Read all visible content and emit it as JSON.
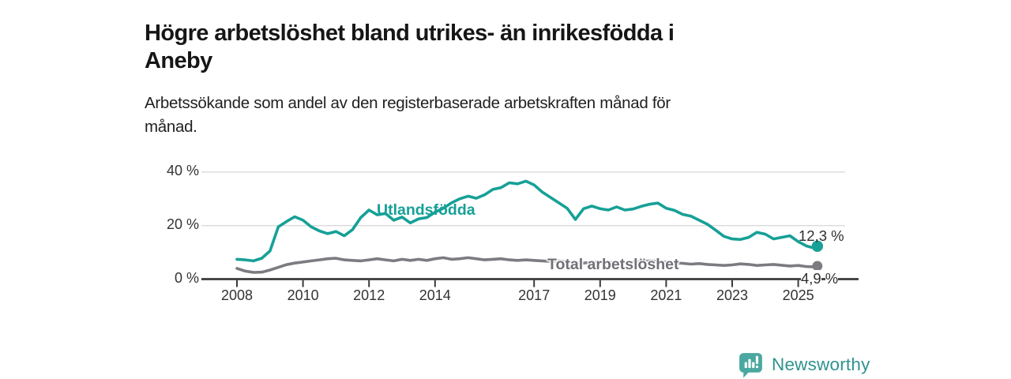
{
  "header": {
    "title_lines": [
      "Högre arbetslöshet bland utrikes- än inrikesfödda i",
      "Aneby"
    ],
    "subtitle_lines": [
      "Arbetssökande som andel av den registerbaserade arbetskraften månad för",
      "månad."
    ]
  },
  "chart_data": {
    "type": "line",
    "title": "Högre arbetslöshet bland utrikes- än inrikesfödda i Aneby",
    "subtitle": "Arbetssökande som andel av den registerbaserade arbetskraften månad för månad.",
    "ylim": [
      0,
      44
    ],
    "xlim": [
      2007.9,
      2025.8
    ],
    "grid": "horizontal",
    "y_ticks": [
      {
        "value": 0,
        "label": "0 %"
      },
      {
        "value": 20,
        "label": "20 %"
      },
      {
        "value": 40,
        "label": "40 %"
      }
    ],
    "x_ticks": [
      {
        "year": 2008,
        "label": "2008"
      },
      {
        "year": 2010,
        "label": "2010"
      },
      {
        "year": 2012,
        "label": "2012"
      },
      {
        "year": 2014,
        "label": "2014"
      },
      {
        "year": 2017,
        "label": "2017"
      },
      {
        "year": 2019,
        "label": "2019"
      },
      {
        "year": 2021,
        "label": "2021"
      },
      {
        "year": 2023,
        "label": "2023"
      },
      {
        "year": 2025,
        "label": "2025"
      }
    ],
    "x": [
      2008,
      2008.25,
      2008.5,
      2008.75,
      2009,
      2009.25,
      2009.5,
      2009.75,
      2010,
      2010.25,
      2010.5,
      2010.75,
      2011,
      2011.25,
      2011.5,
      2011.75,
      2012,
      2012.25,
      2012.5,
      2012.75,
      2013,
      2013.25,
      2013.5,
      2013.75,
      2014,
      2014.25,
      2014.5,
      2014.75,
      2015,
      2015.25,
      2015.5,
      2015.75,
      2016,
      2016.25,
      2016.5,
      2016.75,
      2017,
      2017.25,
      2017.5,
      2017.75,
      2018,
      2018.25,
      2018.5,
      2018.75,
      2019,
      2019.25,
      2019.5,
      2019.75,
      2020,
      2020.25,
      2020.5,
      2020.75,
      2021,
      2021.25,
      2021.5,
      2021.75,
      2022,
      2022.25,
      2022.5,
      2022.75,
      2023,
      2023.25,
      2023.5,
      2023.75,
      2024,
      2024.25,
      2024.5,
      2024.75,
      2025,
      2025.25,
      2025.42,
      2025.58
    ],
    "series": [
      {
        "name": "Utlandsfödda",
        "color": "#16A097",
        "end_label": "12,3 %",
        "end_value": 12.3,
        "values": [
          7.4,
          7.2,
          6.8,
          7.8,
          10.5,
          19.5,
          21.5,
          23.3,
          22.0,
          19.5,
          18.0,
          17.0,
          17.8,
          16.2,
          18.5,
          23.0,
          25.8,
          24.0,
          24.5,
          22.0,
          23.2,
          21.0,
          22.5,
          23.0,
          25.0,
          26.5,
          28.5,
          30.0,
          31.0,
          30.2,
          31.5,
          33.5,
          34.2,
          36.0,
          35.6,
          36.6,
          35.2,
          32.5,
          30.5,
          28.5,
          26.5,
          22.3,
          26.3,
          27.3,
          26.3,
          25.8,
          27.0,
          25.8,
          26.2,
          27.2,
          28.0,
          28.4,
          26.5,
          25.7,
          24.2,
          23.5,
          22.0,
          20.5,
          18.3,
          16.0,
          15.0,
          14.8,
          15.6,
          17.5,
          16.8,
          15.0,
          15.6,
          16.2,
          14.0,
          12.4,
          11.8,
          12.3
        ]
      },
      {
        "name": "Total arbetslöshet",
        "color": "#7B7B81",
        "end_label": "4,9 %",
        "end_value": 4.9,
        "values": [
          4.0,
          3.0,
          2.5,
          2.6,
          3.4,
          4.4,
          5.4,
          6.0,
          6.4,
          6.8,
          7.2,
          7.6,
          7.8,
          7.2,
          7.0,
          6.8,
          7.2,
          7.6,
          7.2,
          6.8,
          7.4,
          7.0,
          7.4,
          7.0,
          7.6,
          8.0,
          7.4,
          7.6,
          8.0,
          7.6,
          7.2,
          7.4,
          7.6,
          7.2,
          7.0,
          7.2,
          7.0,
          6.8,
          6.6,
          6.8,
          6.5,
          6.2,
          6.0,
          6.3,
          6.4,
          6.2,
          6.4,
          6.3,
          6.4,
          6.6,
          6.8,
          6.6,
          6.4,
          6.1,
          5.9,
          5.6,
          5.8,
          5.5,
          5.3,
          5.1,
          5.3,
          5.7,
          5.5,
          5.1,
          5.3,
          5.5,
          5.2,
          4.9,
          5.1,
          4.7,
          4.6,
          4.9
        ]
      }
    ]
  },
  "footer": {
    "brand": "Newsworthy",
    "logo_icon": "newsworthy-speech-bubble-bar-chart-icon",
    "brand_text_color": "#2F948D",
    "logo_icon_color": "#4BA8A0"
  }
}
